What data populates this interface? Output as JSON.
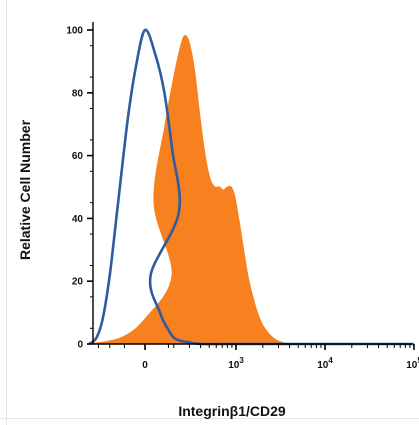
{
  "chart_data": {
    "type": "area",
    "title": "",
    "xlabel": "Integrinβ1/CD29",
    "ylabel": "Relative Cell Number",
    "x_scale": "biexponential (log above 10^2)",
    "ylim": [
      0,
      100
    ],
    "y_ticks": [
      "0",
      "20",
      "40",
      "60",
      "80",
      "100"
    ],
    "x_ticks": [
      {
        "base": "0",
        "exp": ""
      },
      {
        "base": "10",
        "exp": "3"
      },
      {
        "base": "10",
        "exp": "4"
      },
      {
        "base": "10",
        "exp": "5"
      }
    ],
    "grid": false,
    "legend": "none",
    "series": [
      {
        "style": "filled",
        "color": "#f7801f",
        "x": [
          -200,
          -60,
          0,
          60,
          120,
          160,
          200,
          230,
          260,
          290,
          320,
          350,
          380,
          420,
          470,
          520,
          580,
          650,
          720,
          800,
          880,
          950,
          1000,
          1100,
          1250,
          1400,
          1700,
          2000,
          2600,
          3300,
          4000
        ],
        "y": [
          0,
          2,
          8,
          22,
          45,
          70,
          85,
          93,
          98,
          97,
          92,
          85,
          76,
          66,
          57,
          52,
          50,
          50,
          49,
          50,
          50,
          48,
          45,
          38,
          28,
          20,
          11,
          6,
          2,
          0.5,
          0
        ]
      },
      {
        "style": "outline",
        "color": "#2e5c9f",
        "x": [
          -200,
          -160,
          -130,
          -100,
          -70,
          -40,
          -20,
          0,
          20,
          40,
          60,
          80,
          110,
          140,
          170,
          200,
          240,
          300,
          400,
          1000,
          100000
        ],
        "y": [
          0,
          2,
          8,
          22,
          45,
          72,
          88,
          100,
          92,
          80,
          62,
          42,
          22,
          10,
          5,
          2,
          1,
          0.5,
          0,
          0,
          0
        ]
      }
    ]
  },
  "colors": {
    "isotype_outline": "#2e5c9f",
    "stained_fill": "#f7801f",
    "axis": "#000000"
  }
}
